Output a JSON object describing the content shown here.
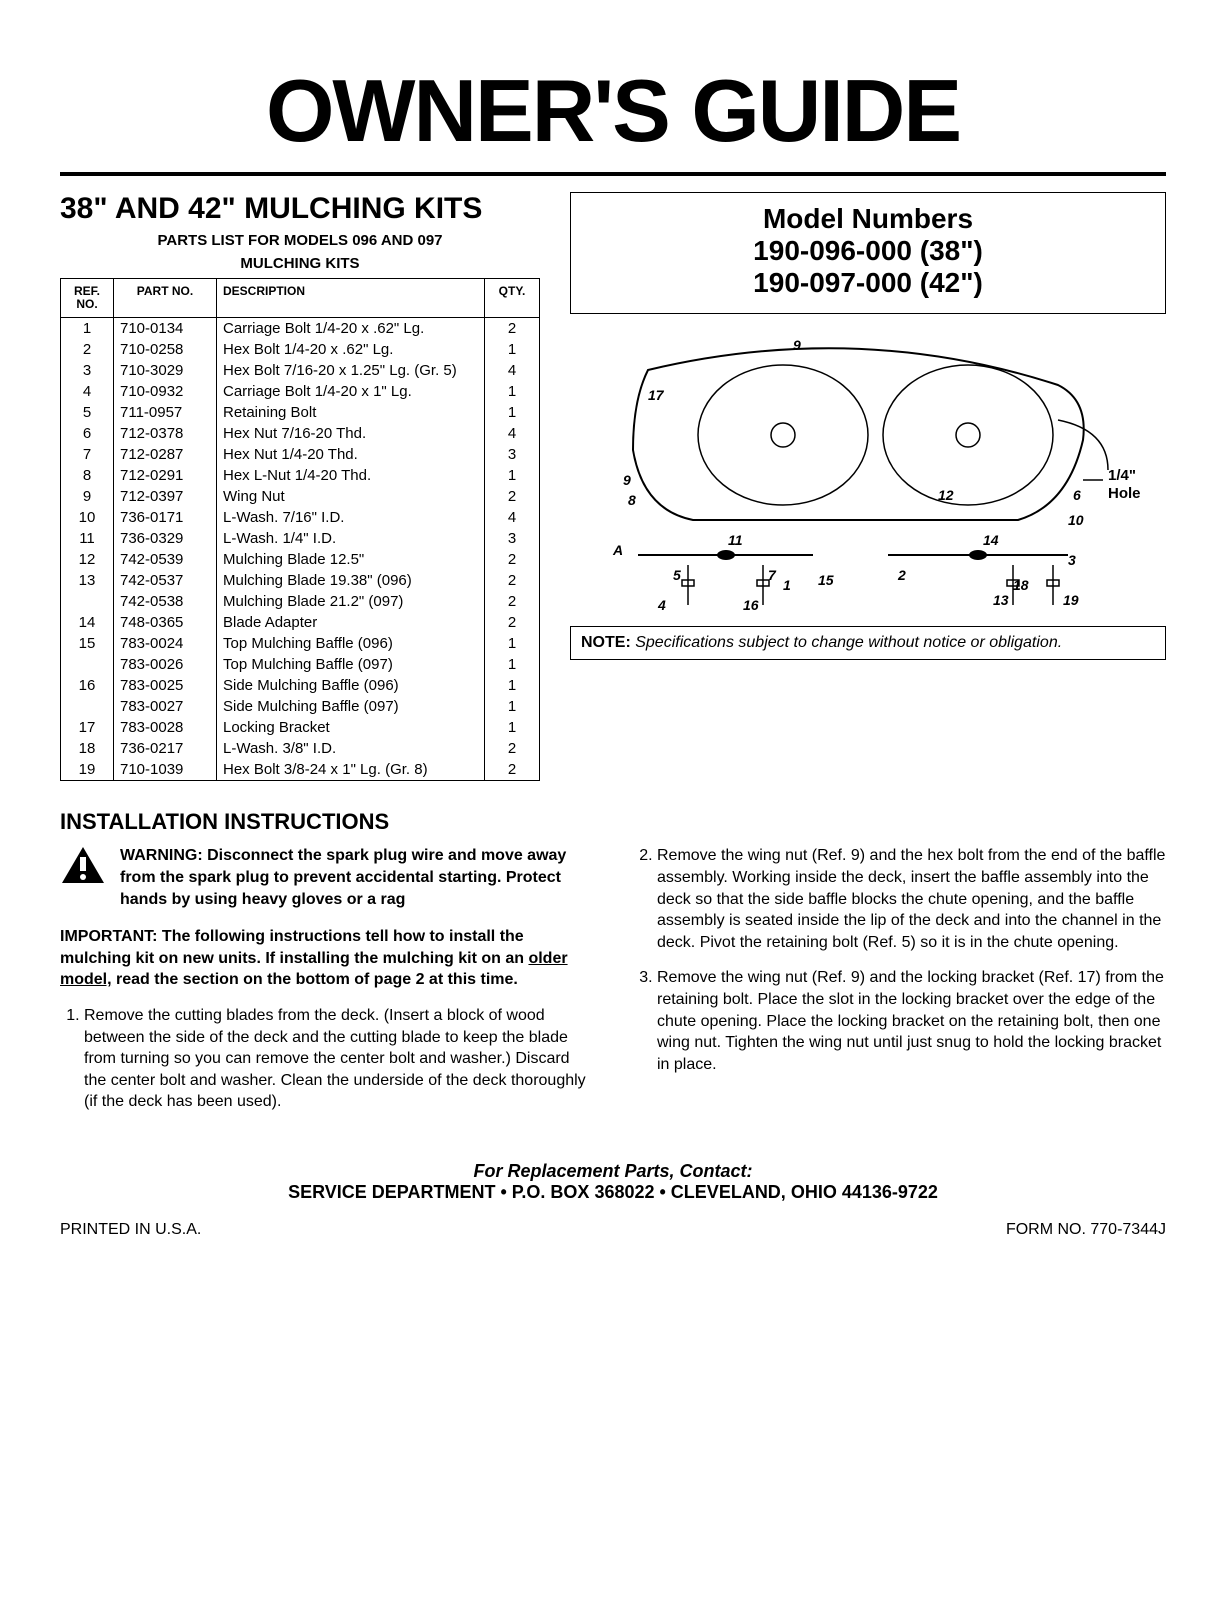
{
  "masthead": "OWNER'S GUIDE",
  "kit_title": "38\" AND 42\" MULCHING KITS",
  "parts_sub_1": "PARTS LIST FOR MODELS 096 AND 097",
  "parts_sub_2": "MULCHING KITS",
  "table": {
    "headers": {
      "ref": "REF.\nNO.",
      "part": "PART\nNO.",
      "desc": "DESCRIPTION",
      "qty": "QTY."
    },
    "rows": [
      {
        "ref": "1",
        "pn": "710-0134",
        "desc": "Carriage Bolt 1/4-20 x .62\" Lg.",
        "qty": "2"
      },
      {
        "ref": "2",
        "pn": "710-0258",
        "desc": "Hex Bolt 1/4-20 x .62\" Lg.",
        "qty": "1"
      },
      {
        "ref": "3",
        "pn": "710-3029",
        "desc": "Hex Bolt 7/16-20 x 1.25\" Lg. (Gr. 5)",
        "qty": "4"
      },
      {
        "ref": "4",
        "pn": "710-0932",
        "desc": "Carriage Bolt 1/4-20 x 1\" Lg.",
        "qty": "1"
      },
      {
        "ref": "5",
        "pn": "711-0957",
        "desc": "Retaining Bolt",
        "qty": "1"
      },
      {
        "ref": "6",
        "pn": "712-0378",
        "desc": "Hex Nut 7/16-20 Thd.",
        "qty": "4"
      },
      {
        "ref": "7",
        "pn": "712-0287",
        "desc": "Hex Nut 1/4-20 Thd.",
        "qty": "3"
      },
      {
        "ref": "8",
        "pn": "712-0291",
        "desc": "Hex L-Nut 1/4-20 Thd.",
        "qty": "1"
      },
      {
        "ref": "9",
        "pn": "712-0397",
        "desc": "Wing Nut",
        "qty": "2"
      },
      {
        "ref": "10",
        "pn": "736-0171",
        "desc": "L-Wash. 7/16\" I.D.",
        "qty": "4"
      },
      {
        "ref": "11",
        "pn": "736-0329",
        "desc": "L-Wash. 1/4\" I.D.",
        "qty": "3"
      },
      {
        "ref": "12",
        "pn": "742-0539",
        "desc": "Mulching Blade 12.5\"",
        "qty": "2"
      },
      {
        "ref": "13",
        "pn": "742-0537",
        "desc": "Mulching Blade 19.38\" (096)",
        "qty": "2"
      },
      {
        "ref": "",
        "pn": "742-0538",
        "desc": "Mulching Blade 21.2\" (097)",
        "qty": "2"
      },
      {
        "ref": "14",
        "pn": "748-0365",
        "desc": "Blade Adapter",
        "qty": "2"
      },
      {
        "ref": "15",
        "pn": "783-0024",
        "desc": "Top Mulching Baffle (096)",
        "qty": "1"
      },
      {
        "ref": "",
        "pn": "783-0026",
        "desc": "Top Mulching Baffle (097)",
        "qty": "1"
      },
      {
        "ref": "16",
        "pn": "783-0025",
        "desc": "Side Mulching Baffle (096)",
        "qty": "1"
      },
      {
        "ref": "",
        "pn": "783-0027",
        "desc": "Side Mulching Baffle (097)",
        "qty": "1"
      },
      {
        "ref": "17",
        "pn": "783-0028",
        "desc": "Locking Bracket",
        "qty": "1"
      },
      {
        "ref": "18",
        "pn": "736-0217",
        "desc": "L-Wash. 3/8\" I.D.",
        "qty": "2"
      },
      {
        "ref": "19",
        "pn": "710-1039",
        "desc": "Hex Bolt 3/8-24 x 1\" Lg. (Gr. 8)",
        "qty": "2"
      }
    ]
  },
  "model_box": {
    "heading": "Model Numbers",
    "line1": "190-096-000 (38\")",
    "line2": "190-097-000 (42\")"
  },
  "note": {
    "label": "NOTE:",
    "body": "Specifications subject to change without notice or obligation."
  },
  "install_heading": "INSTALLATION INSTRUCTIONS",
  "warning": "WARNING: Disconnect the spark plug wire and move away from the spark plug to prevent accidental starting. Protect hands by using heavy gloves or a rag",
  "important_pre": "IMPORTANT: The following instructions tell how to install the mulching kit on new units. If installing the mulching kit on an ",
  "important_u": "older model,",
  "important_post": " read the section on the bottom of page 2 at this time.",
  "steps": {
    "s1": "Remove the cutting blades from the deck. (Insert a block of wood between the side of the deck and the cutting blade to keep the blade from turning so you can remove the center bolt and washer.) Discard the center bolt and washer. Clean the underside of the deck thoroughly (if the deck has been used).",
    "s2": "Remove the wing nut (Ref. 9) and the hex bolt from the end of the baffle assembly. Working inside the deck, insert the baffle assembly into the deck so that the side baffle blocks the chute opening, and the baffle assembly is seated inside the lip of the deck and into the channel in the deck. Pivot the retaining bolt (Ref. 5) so it is in the chute opening.",
    "s3": "Remove the wing nut (Ref. 9) and the locking bracket (Ref. 17) from the retaining bolt. Place the slot in the locking bracket over the edge of the chute opening. Place the locking bracket on the retaining bolt, then one wing nut. Tighten the wing nut until just snug to hold the locking bracket in place."
  },
  "footer": {
    "line1": "For Replacement Parts, Contact:",
    "line2": "SERVICE DEPARTMENT • P.O. BOX 368022 • CLEVELAND, OHIO 44136-9722",
    "printed": "PRINTED IN U.S.A.",
    "form": "FORM NO. 770-7344J"
  },
  "diagram": {
    "hole_label_1": "1/4\"",
    "hole_label_2": "Hole",
    "callouts": [
      "A",
      "1",
      "2",
      "3",
      "4",
      "5",
      "6",
      "7",
      "8",
      "9",
      "10",
      "11",
      "12",
      "13",
      "14",
      "15",
      "16",
      "17",
      "18",
      "19"
    ]
  },
  "colors": {
    "text": "#000000",
    "bg": "#ffffff"
  }
}
